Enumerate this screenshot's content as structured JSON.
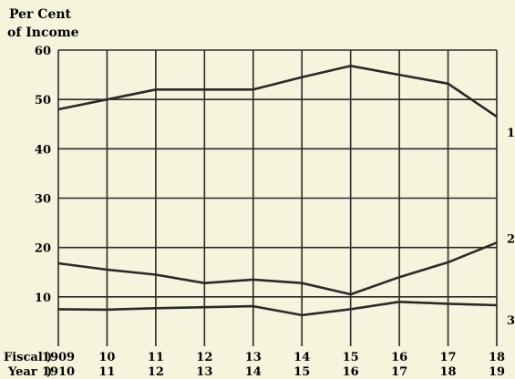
{
  "chart_data": {
    "type": "line",
    "ylabel_line1": "Per Cent",
    "ylabel_line2": "of Income",
    "ylim": [
      0,
      60
    ],
    "yticks": [
      "10",
      "20",
      "30",
      "40",
      "50",
      "60"
    ],
    "grid": true,
    "x_caption_line1": "Fiscal",
    "x_caption_line2": "Year",
    "x_top": [
      "1909",
      "10",
      "11",
      "12",
      "13",
      "14",
      "15",
      "16",
      "17",
      "18"
    ],
    "x_bottom": [
      "1910",
      "11",
      "12",
      "13",
      "14",
      "15",
      "16",
      "17",
      "18",
      "19"
    ],
    "series": [
      {
        "name": "1",
        "values": [
          48,
          50,
          52,
          52,
          52,
          54.5,
          56.8,
          55,
          53.2,
          46.5
        ]
      },
      {
        "name": "2",
        "values": [
          16.8,
          15.5,
          14.5,
          12.8,
          13.5,
          12.8,
          10.5,
          14,
          17,
          21
        ]
      },
      {
        "name": "3",
        "values": [
          7.5,
          7.4,
          7.7,
          7.9,
          8.1,
          6.3,
          7.5,
          9,
          8.6,
          8.3
        ]
      }
    ]
  },
  "colors": {
    "background": "#f6f4dd",
    "line": "#2a2a2a"
  }
}
